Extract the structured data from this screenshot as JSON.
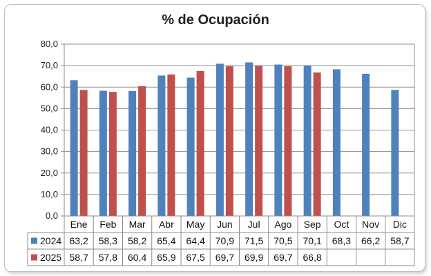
{
  "chart_data": {
    "type": "bar",
    "title": "% de Ocupación",
    "categories": [
      "Ene",
      "Feb",
      "Mar",
      "Abr",
      "May",
      "Jun",
      "Jul",
      "Ago",
      "Sep",
      "Oct",
      "Nov",
      "Dic"
    ],
    "series": [
      {
        "name": "2024",
        "color": "#4f81bd",
        "values": [
          63.2,
          58.3,
          58.2,
          65.4,
          64.4,
          70.9,
          71.5,
          70.5,
          70.1,
          68.3,
          66.2,
          58.7
        ],
        "labels": [
          "63,2",
          "58,3",
          "58,2",
          "65,4",
          "64,4",
          "70,9",
          "71,5",
          "70,5",
          "70,1",
          "68,3",
          "66,2",
          "58,7"
        ]
      },
      {
        "name": "2025",
        "color": "#c0504d",
        "values": [
          58.7,
          57.8,
          60.4,
          65.9,
          67.5,
          69.7,
          69.9,
          69.7,
          66.8,
          null,
          null,
          null
        ],
        "labels": [
          "58,7",
          "57,8",
          "60,4",
          "65,9",
          "67,5",
          "69,7",
          "69,9",
          "69,7",
          "66,8",
          "",
          "",
          ""
        ]
      }
    ],
    "ylim": [
      0,
      80
    ],
    "yticks": [
      0,
      10,
      20,
      30,
      40,
      50,
      60,
      70,
      80
    ],
    "ytick_labels": [
      "0,0",
      "10,0",
      "20,0",
      "30,0",
      "40,0",
      "50,0",
      "60,0",
      "70,0",
      "80,0"
    ],
    "grid": true,
    "legend": "data-table-left"
  }
}
